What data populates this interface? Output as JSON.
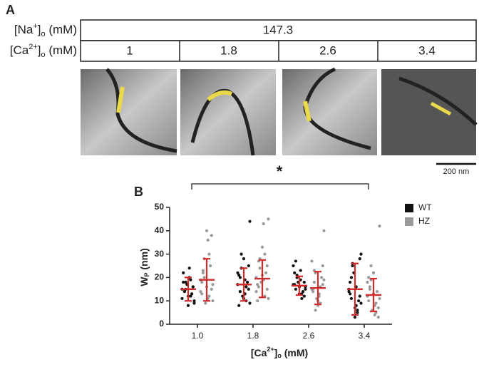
{
  "panel_a": {
    "label": "A",
    "na_label": {
      "base": "[Na",
      "sup": "+",
      "close": "]",
      "sub": "o",
      "unit": " (mM)"
    },
    "ca_label": {
      "base": "[Ca",
      "sup": "2+",
      "close": "]",
      "sub": "o",
      "unit": " (mM)"
    },
    "na_value": "147.3",
    "ca_values": [
      "1",
      "1.8",
      "2.6",
      "3.4"
    ],
    "scale_bar": "200 nm"
  },
  "chart_data": {
    "type": "dot_plot",
    "panel_label": "B",
    "y_label": {
      "base": "W",
      "sub": "P",
      "unit": " (nm)"
    },
    "x_label": {
      "base": "[Ca",
      "sup": "2+",
      "close": "]",
      "sub": "o",
      "unit": " (mM)"
    },
    "categories": [
      "1.0",
      "1.8",
      "2.6",
      "3.4"
    ],
    "ylim": [
      0,
      50
    ],
    "yticks": [
      0,
      10,
      20,
      30,
      40,
      50
    ],
    "significance": "*",
    "series": [
      {
        "name": "WT",
        "color": "#111111",
        "error_color": "#d42a2a",
        "mean": [
          15,
          17,
          16.5,
          15
        ],
        "sd": [
          5,
          7,
          4,
          11
        ],
        "points": [
          [
            15,
            12,
            18,
            10,
            20,
            14,
            16,
            8,
            22,
            13,
            17,
            11,
            19,
            15,
            9,
            24,
            14,
            16,
            12,
            18
          ],
          [
            17,
            10,
            24,
            44,
            13,
            20,
            15,
            28,
            8,
            18,
            12,
            22,
            16,
            30,
            9,
            19,
            14,
            25,
            11,
            21
          ],
          [
            17,
            13,
            21,
            15,
            19,
            27,
            12,
            16,
            22,
            14,
            18,
            25,
            11,
            20,
            16,
            23,
            15,
            18,
            13,
            17
          ],
          [
            15,
            5,
            26,
            30,
            8,
            20,
            12,
            3,
            18,
            10,
            22,
            14,
            6,
            25,
            9,
            16,
            11,
            28,
            7,
            13
          ]
        ]
      },
      {
        "name": "HZ",
        "color": "#999999",
        "error_color": "#d42a2a",
        "mean": [
          19,
          19.5,
          15.5,
          12.5
        ],
        "sd": [
          9,
          8,
          7,
          7
        ],
        "points": [
          [
            19,
            12,
            28,
            10,
            36,
            22,
            15,
            40,
            18,
            25,
            9,
            14,
            30,
            20,
            17,
            11,
            23,
            38,
            16,
            13
          ],
          [
            20,
            12,
            28,
            45,
            43,
            16,
            25,
            33,
            10,
            22,
            18,
            14,
            30,
            24,
            11,
            19,
            27,
            15,
            21,
            17
          ],
          [
            15,
            9,
            22,
            40,
            12,
            18,
            25,
            8,
            14,
            20,
            11,
            27,
            16,
            6,
            19,
            13,
            23,
            17,
            10,
            15
          ],
          [
            12,
            5,
            19,
            42,
            8,
            15,
            3,
            22,
            10,
            14,
            6,
            18,
            9,
            25,
            11,
            4,
            16,
            7,
            13,
            20
          ]
        ]
      }
    ]
  }
}
